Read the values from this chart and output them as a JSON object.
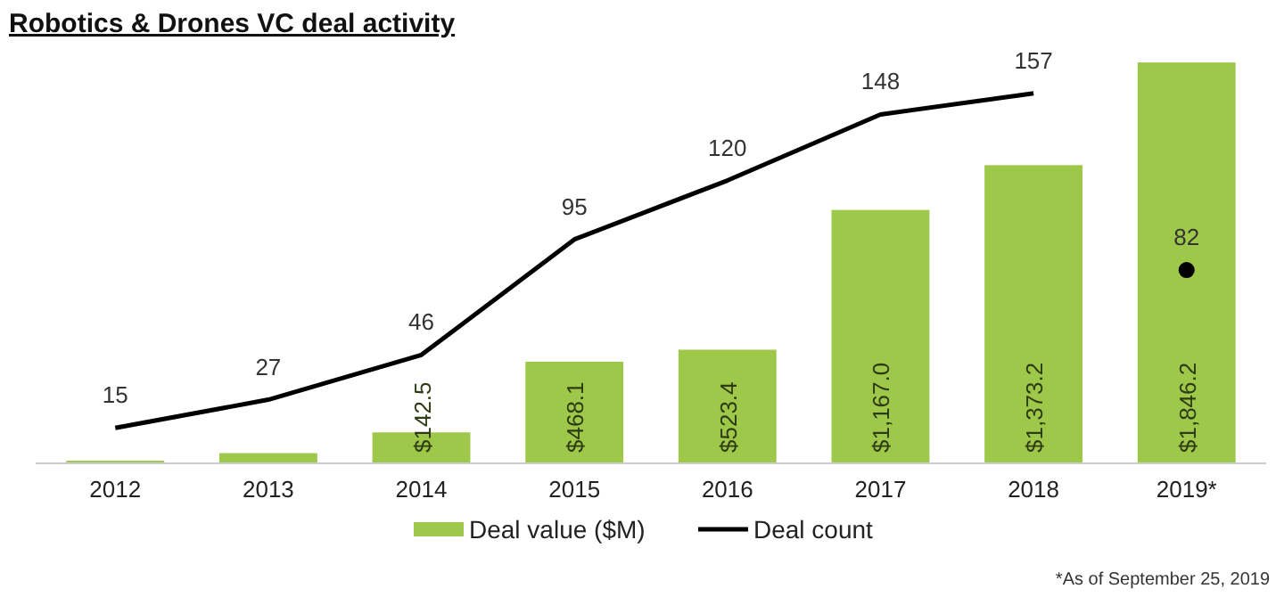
{
  "chart_data": {
    "type": "bar",
    "title": "Robotics & Drones VC deal activity",
    "categories": [
      "2012",
      "2013",
      "2014",
      "2015",
      "2016",
      "2017",
      "2018",
      "2019*"
    ],
    "tick_labels": "x",
    "legend": "bottom",
    "series": [
      {
        "name": "Deal value ($M)",
        "color": "#9dc84a",
        "values": [
          12,
          47,
          142.5,
          468.1,
          523.4,
          1167.0,
          1373.2,
          1846.2
        ],
        "value_labels": [
          null,
          null,
          "$142.5",
          "$468.1",
          "$523.4",
          "$1,167.0",
          "$1,373.2",
          "$1,846.2"
        ]
      },
      {
        "name": "Deal count",
        "type": "line",
        "axis": "y2",
        "color": "#000000",
        "line_style": "solid",
        "marker": "none",
        "values": [
          15,
          27,
          46,
          95,
          120,
          148,
          157,
          null
        ],
        "value_labels": [
          "15",
          "27",
          "46",
          "95",
          "120",
          "148",
          "157",
          null
        ]
      },
      {
        "type": "scatter",
        "axis": "y2",
        "color": "#000000",
        "marker": "circle",
        "values": [
          null,
          null,
          null,
          null,
          null,
          null,
          null,
          82
        ],
        "value_labels": [
          null,
          null,
          null,
          null,
          null,
          null,
          null,
          "82"
        ]
      }
    ],
    "annotations": [
      "*As of September 25, 2019"
    ]
  }
}
